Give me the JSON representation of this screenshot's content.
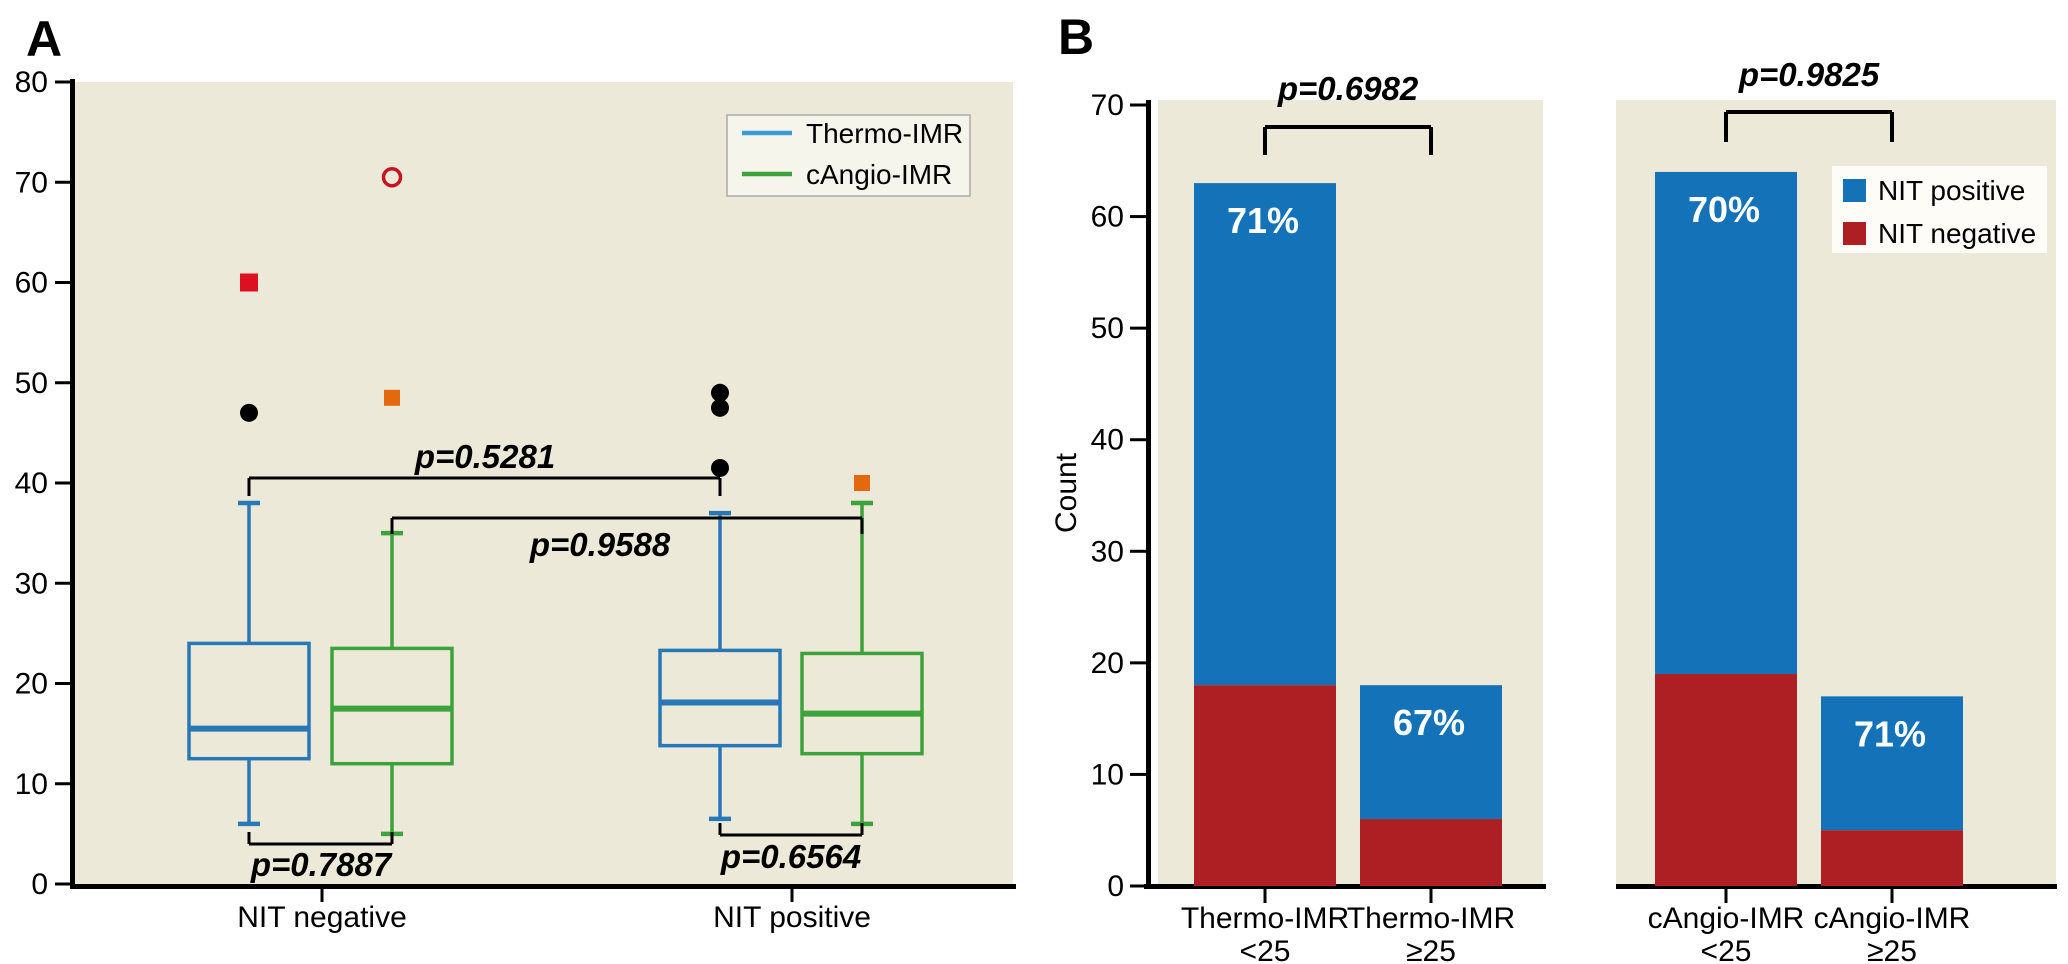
{
  "figure": {
    "panel_a_label": "A",
    "panel_b_label": "B"
  },
  "colors": {
    "plot_background": "#EDE9D9",
    "axis_black": "#000000",
    "thermo_blue": "#2878B8",
    "cangio_green": "#3CA23C",
    "legend_line_blue": "#3D9BD5",
    "legend_line_green": "#3CA23C",
    "bar_blue": "#1473B8",
    "bar_dark_red": "#AD1F23",
    "marker_black": "#000000",
    "marker_red_square": "#DC1020",
    "marker_orange_square": "#E2690E",
    "marker_red_open_circle": "#C8121F",
    "legend_a_background": "#F6F5EC",
    "legend_a_border": "#AAAAAA",
    "legend_b_background": "#FDFCF7"
  },
  "chart_data": [
    {
      "panel": "A",
      "type": "box",
      "ylim": [
        0,
        80
      ],
      "yticks": [
        0,
        10,
        20,
        30,
        40,
        50,
        60,
        70,
        80
      ],
      "groups": [
        "NIT negative",
        "NIT positive"
      ],
      "legend": [
        {
          "name": "Thermo-IMR",
          "color": "#2878B8",
          "line_color": "#3D9BD5"
        },
        {
          "name": "cAngio-IMR",
          "color": "#3CA23C",
          "line_color": "#3CA23C"
        }
      ],
      "boxes": [
        {
          "series": "Thermo-IMR",
          "group": "NIT negative",
          "whisker_low": 6,
          "q1": 12.5,
          "median": 15.5,
          "q3": 24,
          "whisker_high": 38,
          "outliers": [
            {
              "value": 47,
              "marker": "black-dot"
            },
            {
              "value": 60,
              "marker": "red-square"
            }
          ]
        },
        {
          "series": "cAngio-IMR",
          "group": "NIT negative",
          "whisker_low": 5,
          "q1": 12,
          "median": 17.5,
          "q3": 23.5,
          "whisker_high": 35,
          "outliers": [
            {
              "value": 48.5,
              "marker": "orange-square"
            },
            {
              "value": 70.5,
              "marker": "red-open-circle"
            }
          ]
        },
        {
          "series": "Thermo-IMR",
          "group": "NIT positive",
          "whisker_low": 6.5,
          "q1": 13.8,
          "median": 18.1,
          "q3": 23.3,
          "whisker_high": 37,
          "outliers": [
            {
              "value": 41.5,
              "marker": "black-dot"
            },
            {
              "value": 47.5,
              "marker": "black-dot"
            },
            {
              "value": 49,
              "marker": "black-dot"
            }
          ]
        },
        {
          "series": "cAngio-IMR",
          "group": "NIT positive",
          "whisker_low": 6,
          "q1": 13,
          "median": 17,
          "q3": 23,
          "whisker_high": 38,
          "outliers": [
            {
              "value": 40,
              "marker": "orange-square"
            }
          ]
        }
      ],
      "comparisons": [
        {
          "label": "p=0.7887",
          "between_idx": [
            0,
            1
          ],
          "side": "below"
        },
        {
          "label": "p=0.6564",
          "between_idx": [
            2,
            3
          ],
          "side": "below"
        },
        {
          "label": "p=0.5281",
          "between_idx": [
            0,
            2
          ],
          "side": "above"
        },
        {
          "label": "p=0.9588",
          "between_idx": [
            1,
            3
          ],
          "side": "above"
        }
      ]
    },
    {
      "panel": "B",
      "type": "bar",
      "stacked": true,
      "ylabel": "Count",
      "ylim": [
        0,
        70
      ],
      "yticks": [
        0,
        10,
        20,
        30,
        40,
        50,
        60,
        70
      ],
      "series": [
        {
          "name": "NIT positive",
          "color": "#1473B8"
        },
        {
          "name": "NIT negative",
          "color": "#AD1F23"
        }
      ],
      "subpanels": [
        {
          "comparison": {
            "label": "p=0.6982",
            "between_idx": [
              0,
              1
            ]
          },
          "bars": [
            {
              "category": "Thermo-IMR",
              "category_line2": "<25",
              "nit_negative": 18,
              "total": 63,
              "pct_label": "71%"
            },
            {
              "category": "Thermo-IMR",
              "category_line2": "≥25",
              "nit_negative": 6,
              "total": 18,
              "pct_label": "67%"
            }
          ]
        },
        {
          "comparison": {
            "label": "p=0.9825",
            "between_idx": [
              2,
              3
            ]
          },
          "bars": [
            {
              "category": "cAngio-IMR",
              "category_line2": "<25",
              "nit_negative": 19,
              "total": 64,
              "pct_label": "70%"
            },
            {
              "category": "cAngio-IMR",
              "category_line2": "≥25",
              "nit_negative": 5,
              "total": 17,
              "pct_label": "71%"
            }
          ]
        }
      ]
    }
  ]
}
